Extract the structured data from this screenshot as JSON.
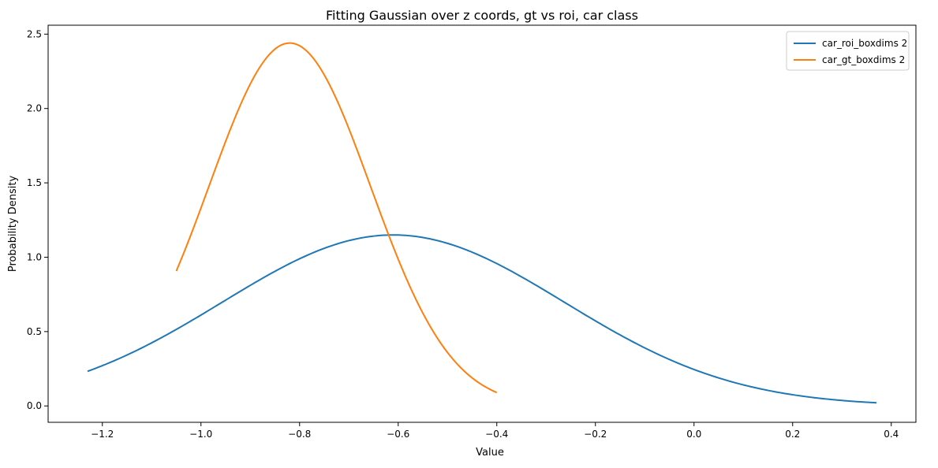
{
  "chart_data": {
    "type": "line",
    "title": "Fitting Gaussian over z coords, gt vs roi, car class",
    "xlabel": "Value",
    "ylabel": "Probability Density",
    "xlim": [
      -1.31,
      0.45
    ],
    "ylim": [
      -0.11,
      2.56
    ],
    "xticks": [
      -1.2,
      -1.0,
      -0.8,
      -0.6,
      -0.4,
      -0.2,
      0.0,
      0.2,
      0.4
    ],
    "xtick_labels": [
      "−1.2",
      "−1.0",
      "−0.8",
      "−0.6",
      "−0.4",
      "−0.2",
      "0.0",
      "0.2",
      "0.4"
    ],
    "yticks": [
      0.0,
      0.5,
      1.0,
      1.5,
      2.0,
      2.5
    ],
    "ytick_labels": [
      "0.0",
      "0.5",
      "1.0",
      "1.5",
      "2.0",
      "2.5"
    ],
    "grid": false,
    "legend_position": "top-right",
    "series": [
      {
        "name": "car_roi_boxdims 2",
        "color": "#1f77b4",
        "distribution": "gaussian",
        "mean": -0.61,
        "std": 0.347,
        "x_range": [
          -1.23,
          0.37
        ]
      },
      {
        "name": "car_gt_boxdims 2",
        "color": "#ff7f0e",
        "distribution": "gaussian",
        "mean": -0.82,
        "std": 0.1635,
        "x_range": [
          -1.05,
          -0.4
        ]
      }
    ]
  }
}
